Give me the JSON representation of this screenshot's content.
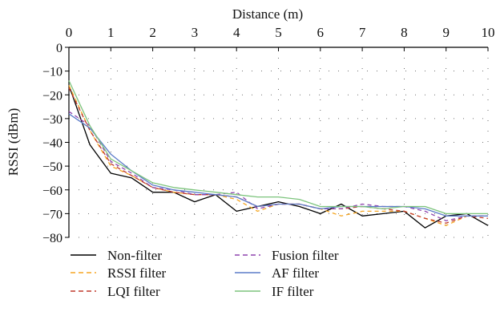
{
  "chart_data": {
    "type": "line",
    "xlabel": "Distance (m)",
    "ylabel": "RSSI (dBm)",
    "xlim": [
      0,
      10
    ],
    "ylim": [
      -80,
      0
    ],
    "x_ticks": [
      0,
      1,
      2,
      3,
      4,
      5,
      6,
      7,
      8,
      9,
      10
    ],
    "y_ticks": [
      0,
      -10,
      -20,
      -30,
      -40,
      -50,
      -60,
      -70,
      -80
    ],
    "x_tick_labels": [
      "0",
      "1",
      "2",
      "3",
      "4",
      "5",
      "6",
      "7",
      "8",
      "9",
      "10"
    ],
    "y_tick_labels": [
      "0",
      "−10",
      "−20",
      "−30",
      "−40",
      "−50",
      "−60",
      "−70",
      "−80"
    ],
    "x_axis_position": "top",
    "grid": "dotted",
    "legend_position": "bottom",
    "x": [
      0,
      0.5,
      1,
      1.5,
      2,
      2.5,
      3,
      3.5,
      4,
      4.5,
      5,
      5.5,
      6,
      6.5,
      7,
      7.5,
      8,
      8.5,
      9,
      9.5,
      10
    ],
    "series": [
      {
        "name": "Non-filter",
        "color": "#000000",
        "dash": "solid",
        "values": [
          -16,
          -41,
          -53,
          -55,
          -61,
          -61,
          -65,
          -62,
          -69,
          -67,
          -65,
          -67,
          -70,
          -66,
          -71,
          -70,
          -69,
          -76,
          -71,
          -70,
          -75
        ]
      },
      {
        "name": "RSSI filter",
        "color": "#f5a623",
        "dash": "dashed",
        "values": [
          -16,
          -35,
          -50,
          -54,
          -59,
          -61,
          -62,
          -62,
          -64,
          -69,
          -66,
          -66,
          -68,
          -71,
          -69,
          -69,
          -69,
          -72,
          -75,
          -71,
          -71
        ]
      },
      {
        "name": "LQI filter",
        "color": "#c0392b",
        "dash": "dashed",
        "values": [
          -17,
          -35,
          -49,
          -54,
          -59,
          -61,
          -62,
          -62,
          -63,
          -67,
          -66,
          -66,
          -68,
          -68,
          -67,
          -68,
          -69,
          -72,
          -74,
          -71,
          -72
        ]
      },
      {
        "name": "Fusion filter",
        "color": "#8e44ad",
        "dash": "dashed",
        "values": [
          -27,
          -33,
          -48,
          -53,
          -59,
          -60,
          -62,
          -62,
          -61,
          -68,
          -66,
          -66,
          -68,
          -68,
          -66,
          -67,
          -67,
          -69,
          -73,
          -71,
          -71
        ]
      },
      {
        "name": "AF filter",
        "color": "#5b7bc8",
        "dash": "solid",
        "values": [
          -28,
          -34,
          -45,
          -52,
          -58,
          -60,
          -61,
          -62,
          -63,
          -67,
          -66,
          -66,
          -68,
          -67,
          -67,
          -67,
          -67,
          -68,
          -71,
          -71,
          -71
        ]
      },
      {
        "name": "IF filter",
        "color": "#7dc47d",
        "dash": "solid",
        "values": [
          -14,
          -33,
          -47,
          -52,
          -57,
          -59,
          -60,
          -61,
          -62,
          -63,
          -63,
          -64,
          -67,
          -67,
          -67,
          -68,
          -67,
          -67,
          -70,
          -70,
          -70
        ]
      }
    ]
  }
}
